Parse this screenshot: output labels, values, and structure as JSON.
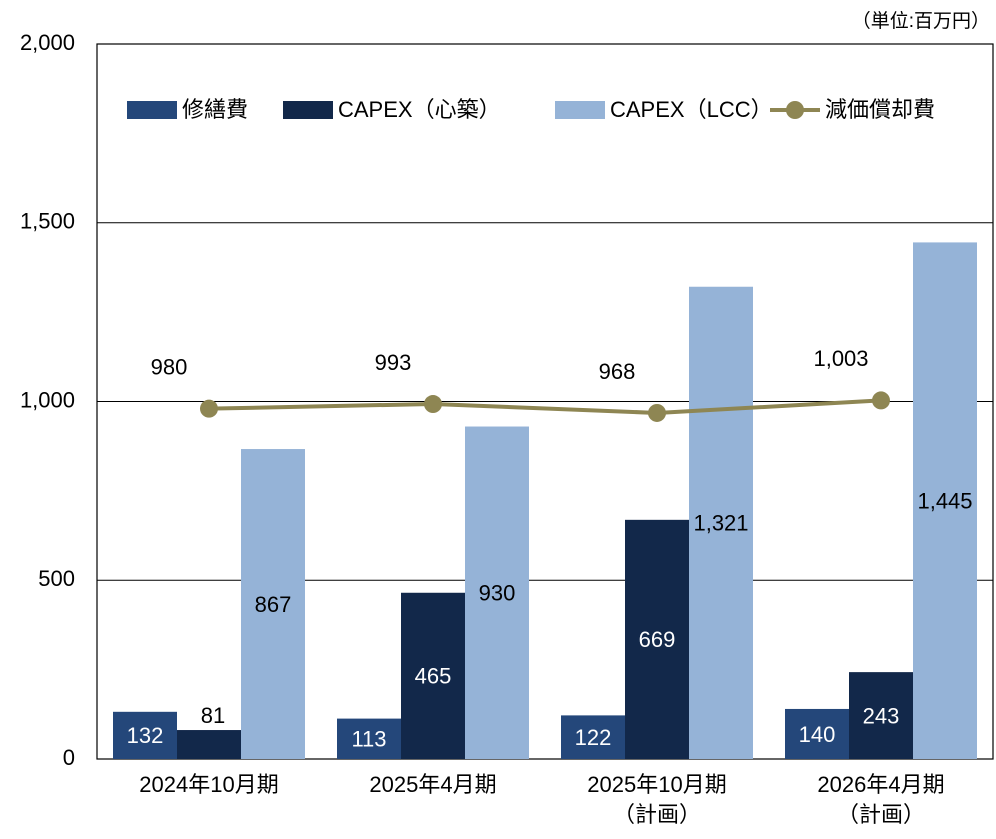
{
  "chart_data": {
    "type": "bar",
    "unit_note": "（単位:百万円）",
    "categories": [
      "2024年10月期",
      "2025年4月期",
      "2025年10月期\n（計画）",
      "2026年4月期\n（計画）"
    ],
    "series": [
      {
        "name": "修繕費",
        "color": "#24477a",
        "values": [
          132,
          113,
          122,
          140
        ]
      },
      {
        "name": "CAPEX（心築）",
        "color": "#12284a",
        "values": [
          81,
          465,
          669,
          243
        ]
      },
      {
        "name": "CAPEX（LCC）",
        "color": "#95b3d7",
        "values": [
          867,
          930,
          1321,
          1445
        ],
        "value_labels": [
          "867",
          "930",
          "1,321",
          "1,445"
        ]
      },
      {
        "name": "減価償却費",
        "type": "line",
        "color": "#8e8653",
        "values": [
          980,
          993,
          968,
          1003
        ],
        "value_labels": [
          "980",
          "993",
          "968",
          "1,003"
        ]
      }
    ],
    "ylim": [
      0,
      2000
    ],
    "yticks": [
      0,
      500,
      {
        "value": 1000,
        "label": "1,000"
      },
      {
        "value": 1500,
        "label": "1,500"
      },
      {
        "value": 2000,
        "label": "2,000"
      }
    ],
    "grid": true,
    "legend": "top"
  }
}
